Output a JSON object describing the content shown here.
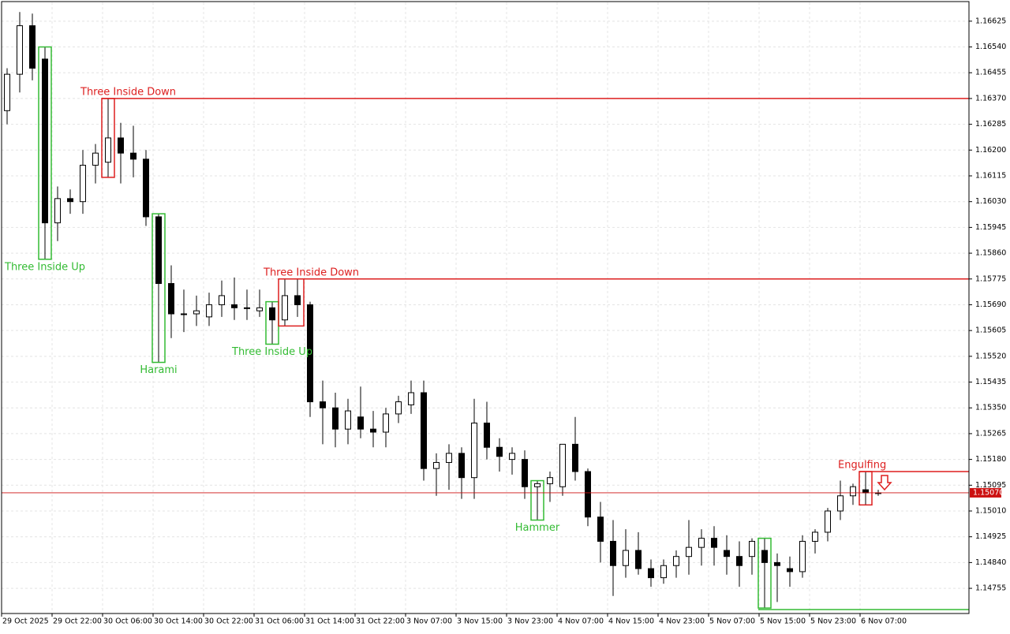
{
  "chart_data": {
    "type": "candlestick",
    "ylim": [
      1.14672,
      1.16687
    ],
    "yticks": [
      1.16625,
      {
        "value": 1.1654,
        "label": "1.16540"
      },
      1.16455,
      {
        "value": 1.1637,
        "label": "1.16370"
      },
      1.16285,
      {
        "value": 1.162,
        "label": "1.16200"
      },
      1.16115,
      {
        "value": 1.1603,
        "label": "1.16030"
      },
      1.15945,
      {
        "value": 1.1586,
        "label": "1.15860"
      },
      1.15775,
      {
        "value": 1.1569,
        "label": "1.15690"
      },
      1.15605,
      {
        "value": 1.1552,
        "label": "1.15520"
      },
      1.15435,
      {
        "value": 1.1535,
        "label": "1.15350"
      },
      1.15265,
      {
        "value": 1.1518,
        "label": "1.15180"
      },
      1.15095,
      {
        "value": 1.1501,
        "label": "1.15010"
      },
      1.14925,
      {
        "value": 1.1484,
        "label": "1.14840"
      },
      1.14755
    ],
    "categories": [
      "29 Oct 2025",
      null,
      null,
      null,
      "29 Oct 22:00",
      null,
      null,
      null,
      "30 Oct 06:00",
      null,
      null,
      null,
      "30 Oct 14:00",
      null,
      null,
      null,
      "30 Oct 22:00",
      null,
      null,
      null,
      "31 Oct 06:00",
      null,
      null,
      null,
      "31 Oct 14:00",
      null,
      null,
      null,
      "31 Oct 22:00",
      null,
      null,
      null,
      "3 Nov 07:00",
      null,
      null,
      null,
      "3 Nov 15:00",
      null,
      null,
      null,
      "3 Nov 23:00",
      null,
      null,
      null,
      "4 Nov 07:00",
      null,
      null,
      null,
      "4 Nov 15:00",
      null,
      null,
      null,
      "4 Nov 23:00",
      null,
      null,
      null,
      "5 Nov 07:00",
      null,
      null,
      null,
      "5 Nov 15:00",
      null,
      null,
      null,
      "5 Nov 23:00",
      null,
      null,
      null,
      "6 Nov 07:00",
      null
    ],
    "open": [
      1.1633,
      1.1645,
      1.1661,
      1.165,
      1.1596,
      1.1604,
      1.1603,
      1.1615,
      1.1616,
      1.1624,
      1.1619,
      1.1617,
      1.1598,
      1.1576,
      1.1566,
      1.1566,
      1.1565,
      1.1569,
      1.1569,
      1.1568,
      1.1567,
      1.1568,
      1.1564,
      1.1572,
      1.1569,
      1.1537,
      1.1535,
      1.1528,
      1.1532,
      1.1528,
      1.1527,
      1.1533,
      1.1536,
      1.154,
      1.1515,
      1.1517,
      1.152,
      1.1512,
      1.153,
      1.1522,
      1.1518,
      1.1518,
      1.1509,
      1.151,
      1.1509,
      1.1523,
      1.1514,
      1.1499,
      1.1491,
      1.1483,
      1.1488,
      1.1482,
      1.1479,
      1.1483,
      1.1486,
      1.1489,
      1.1492,
      1.1488,
      1.1486,
      1.1486,
      1.1488,
      1.1484,
      1.1482,
      1.1481,
      1.1491,
      1.1494,
      1.1501,
      1.1506,
      1.1508,
      1.1507
    ],
    "high": [
      1.1647,
      1.16655,
      1.1665,
      1.1654,
      1.1608,
      1.1607,
      1.162,
      1.1622,
      1.1637,
      1.1629,
      1.1628,
      1.162,
      1.1599,
      1.1582,
      1.1574,
      1.1572,
      1.1573,
      1.1577,
      1.1578,
      1.1574,
      1.1574,
      1.157,
      1.15775,
      1.15775,
      1.157,
      1.1544,
      1.154,
      1.1538,
      1.1542,
      1.1534,
      1.1535,
      1.1539,
      1.1544,
      1.1544,
      1.152,
      1.1523,
      1.1522,
      1.1538,
      1.1537,
      1.1525,
      1.1522,
      1.1521,
      1.1511,
      1.1514,
      1.1522,
      1.1532,
      1.1515,
      1.1504,
      1.1498,
      1.1495,
      1.1494,
      1.1485,
      1.1485,
      1.1488,
      1.1498,
      1.1495,
      1.1496,
      1.1493,
      1.1491,
      1.1492,
      1.1492,
      1.1487,
      1.1486,
      1.1493,
      1.1495,
      1.1502,
      1.1511,
      1.151,
      1.1514,
      1.1508
    ],
    "low": [
      1.16285,
      1.1639,
      1.1643,
      1.1584,
      1.159,
      1.1599,
      1.1599,
      1.1609,
      1.1611,
      1.1609,
      1.1611,
      1.1595,
      1.155,
      1.1558,
      1.156,
      1.1562,
      1.1562,
      1.1565,
      1.1564,
      1.1564,
      1.1565,
      1.1556,
      1.1562,
      1.1565,
      1.1532,
      1.1523,
      1.1522,
      1.1523,
      1.1525,
      1.1522,
      1.1522,
      1.153,
      1.1533,
      1.1511,
      1.1506,
      1.1508,
      1.1505,
      1.1505,
      1.1518,
      1.1514,
      1.1513,
      1.1505,
      1.1498,
      1.1504,
      1.1506,
      1.1511,
      1.1496,
      1.1484,
      1.1473,
      1.1479,
      1.148,
      1.1476,
      1.1477,
      1.1479,
      1.148,
      1.1483,
      1.1483,
      1.148,
      1.1476,
      1.148,
      1.1469,
      1.1471,
      1.1476,
      1.1479,
      1.1487,
      1.1491,
      1.1498,
      1.1503,
      1.1503,
      1.1506
    ],
    "close": [
      1.1645,
      1.1661,
      1.1647,
      1.1596,
      1.1604,
      1.1603,
      1.1615,
      1.1619,
      1.1624,
      1.1619,
      1.1617,
      1.1598,
      1.1576,
      1.1566,
      1.1566,
      1.1567,
      1.1569,
      1.1572,
      1.1568,
      1.1568,
      1.1568,
      1.1564,
      1.1572,
      1.1569,
      1.1537,
      1.1535,
      1.1528,
      1.1534,
      1.1528,
      1.1527,
      1.1533,
      1.1537,
      1.154,
      1.1515,
      1.1517,
      1.152,
      1.1512,
      1.153,
      1.1522,
      1.1519,
      1.152,
      1.1509,
      1.151,
      1.1512,
      1.1523,
      1.1514,
      1.1499,
      1.1491,
      1.1483,
      1.1488,
      1.1482,
      1.1479,
      1.1483,
      1.1486,
      1.1489,
      1.1492,
      1.1489,
      1.1486,
      1.1483,
      1.1491,
      1.1484,
      1.1483,
      1.1481,
      1.1491,
      1.1494,
      1.1501,
      1.1506,
      1.1509,
      1.1507,
      1.1507
    ],
    "patterns": [
      {
        "name": "Three Inside Up",
        "color": "#33bb33",
        "from": 3,
        "to": 3,
        "direction": "bull"
      },
      {
        "name": "Three Inside Down",
        "color": "#dd1f1f",
        "from": 8,
        "to": 8,
        "direction": "bear",
        "level": 1.1637
      },
      {
        "name": "Harami",
        "color": "#33bb33",
        "from": 12,
        "to": 12,
        "direction": "bull"
      },
      {
        "name": "Three Inside Up",
        "color": "#33bb33",
        "from": 21,
        "to": 21,
        "direction": "bull"
      },
      {
        "name": "Three Inside Down",
        "color": "#dd1f1f",
        "from": 22,
        "to": 23,
        "direction": "bear",
        "level": 1.15775
      },
      {
        "name": "Hammer",
        "color": "#33bb33",
        "from": 42,
        "to": 42,
        "direction": "bull"
      },
      {
        "color": "#33bb33",
        "from": 60,
        "to": 60,
        "direction": "bull",
        "level": 1.14685
      },
      {
        "name": "Engulfing",
        "color": "#dd1f1f",
        "from": 68,
        "to": 68,
        "direction": "bear",
        "level": 1.1514
      }
    ],
    "last_price": {
      "value": 1.1507,
      "label": "1.15070",
      "color": "#cc1111"
    },
    "grid": true
  }
}
